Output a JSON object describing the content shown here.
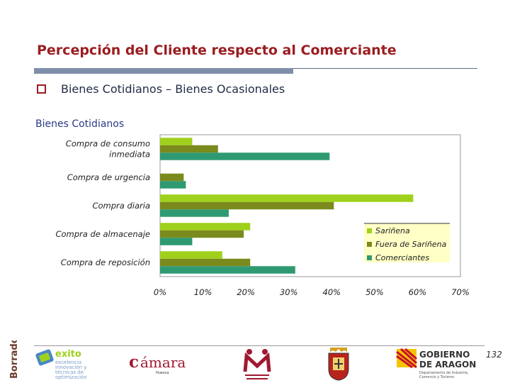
{
  "slide": {
    "title": "Percepción del Cliente respecto al Comerciante",
    "bullet": "Bienes Cotidianos – Bienes Ocasionales",
    "page_number": "132"
  },
  "chart_data": {
    "type": "bar",
    "orientation": "horizontal",
    "title": "Bienes Cotidianos",
    "categories": [
      "Compra de consumo inmediata",
      "Compra de urgencia",
      "Compra diaria",
      "Compra de almacenaje",
      "Compra de reposición"
    ],
    "category_lines": [
      [
        "Compra de consumo",
        "inmediata"
      ],
      [
        "Compra de urgencia"
      ],
      [
        "Compra diaria"
      ],
      [
        "Compra de almacenaje"
      ],
      [
        "Compra de reposición"
      ]
    ],
    "series": [
      {
        "name": "Sariñena",
        "color": "#9fd11c",
        "values": [
          7.5,
          0,
          59,
          21,
          14.5
        ]
      },
      {
        "name": "Fuera de Sariñena",
        "color": "#7b8a1c",
        "values": [
          13.5,
          5.5,
          40.5,
          19.5,
          21
        ]
      },
      {
        "name": "Comerciantes",
        "color": "#2f9a71",
        "values": [
          39.5,
          6,
          16,
          7.5,
          31.5
        ]
      }
    ],
    "x_ticks": [
      "0%",
      "10%",
      "20%",
      "30%",
      "40%",
      "50%",
      "60%",
      "70%"
    ],
    "xlim": [
      0,
      70
    ],
    "grid": false,
    "legend_position": "right"
  },
  "footer": {
    "watermark": "Borrador",
    "logos": {
      "exito": "exito excelencia innovación y técnicas de optimización",
      "camara": "cámara Huesca",
      "mujer": "",
      "gobierno": "GOBIERNO DE ARAGON Departamento de Industria, Comercio y Turismo"
    }
  },
  "colors": {
    "title": "#9b1d20",
    "accent_bar": "#7e8fa9",
    "legend_bg": "#ffffc6"
  }
}
